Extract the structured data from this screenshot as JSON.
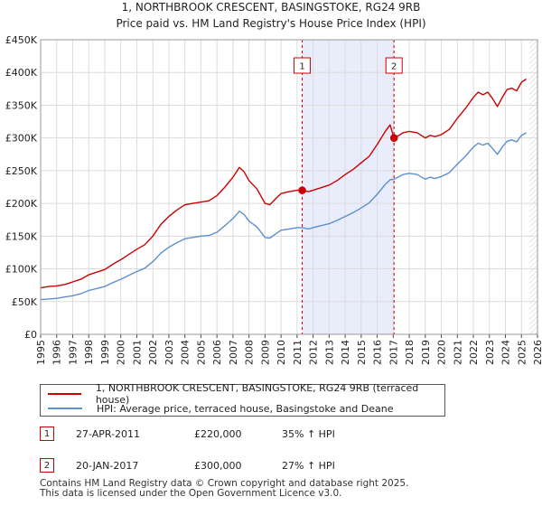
{
  "chart_data": {
    "type": "line",
    "title": "1, NORTHBROOK CRESCENT, BASINGSTOKE, RG24 9RB",
    "subtitle": "Price paid vs. HM Land Registry's House Price Index (HPI)",
    "xlim": [
      1995,
      2026
    ],
    "ylim": [
      0,
      450000
    ],
    "x_ticks": [
      "1995",
      "1996",
      "1997",
      "1998",
      "1999",
      "2000",
      "2001",
      "2002",
      "2003",
      "2004",
      "2005",
      "2006",
      "2007",
      "2008",
      "2009",
      "2010",
      "2011",
      "2012",
      "2013",
      "2014",
      "2015",
      "2016",
      "2017",
      "2018",
      "2019",
      "2020",
      "2021",
      "2022",
      "2023",
      "2024",
      "2025",
      "2026"
    ],
    "y_ticks": [
      {
        "value": 0,
        "label": "£0"
      },
      {
        "value": 50000,
        "label": "£50K"
      },
      {
        "value": 100000,
        "label": "£100K"
      },
      {
        "value": 150000,
        "label": "£150K"
      },
      {
        "value": 200000,
        "label": "£200K"
      },
      {
        "value": 250000,
        "label": "£250K"
      },
      {
        "value": 300000,
        "label": "£300K"
      },
      {
        "value": 350000,
        "label": "£350K"
      },
      {
        "value": 400000,
        "label": "£400K"
      },
      {
        "value": 450000,
        "label": "£450K"
      }
    ],
    "grid": true,
    "shaded_period": {
      "from": 2011.32,
      "to": 2017.05,
      "color": "#e8ecfb"
    },
    "future_hatch_from": 2025.5,
    "series": [
      {
        "name": "1, NORTHBROOK CRESCENT, BASINGSTOKE, RG24 9RB (terraced house)",
        "color": "#cc0000",
        "x": [
          1995.0,
          1995.5,
          1996.0,
          1996.5,
          1997.0,
          1997.5,
          1998.0,
          1998.5,
          1999.0,
          1999.5,
          2000.0,
          2000.5,
          2001.0,
          2001.5,
          2002.0,
          2002.5,
          2003.0,
          2003.5,
          2004.0,
          2004.5,
          2005.0,
          2005.5,
          2006.0,
          2006.5,
          2007.0,
          2007.4,
          2007.7,
          2008.0,
          2008.5,
          2009.0,
          2009.3,
          2009.7,
          2010.0,
          2010.5,
          2011.0,
          2011.32,
          2011.7,
          2012.0,
          2012.5,
          2013.0,
          2013.5,
          2014.0,
          2014.5,
          2015.0,
          2015.5,
          2016.0,
          2016.5,
          2016.8,
          2017.05,
          2017.3,
          2017.6,
          2018.0,
          2018.5,
          2019.0,
          2019.3,
          2019.6,
          2020.0,
          2020.5,
          2021.0,
          2021.5,
          2022.0,
          2022.3,
          2022.6,
          2022.9,
          2023.2,
          2023.5,
          2023.8,
          2024.1,
          2024.4,
          2024.7,
          2025.0,
          2025.3
        ],
        "y": [
          71000,
          73000,
          74000,
          76000,
          80000,
          84000,
          91000,
          95000,
          99000,
          107000,
          114000,
          122000,
          130000,
          137000,
          150000,
          168000,
          180000,
          190000,
          198000,
          200000,
          202000,
          204000,
          212000,
          225000,
          240000,
          255000,
          248000,
          235000,
          222000,
          200000,
          198000,
          208000,
          215000,
          218000,
          220000,
          220000,
          218000,
          220000,
          224000,
          228000,
          235000,
          244000,
          252000,
          262000,
          272000,
          290000,
          310000,
          320000,
          300000,
          303000,
          308000,
          310000,
          308000,
          300000,
          304000,
          302000,
          305000,
          313000,
          330000,
          345000,
          362000,
          370000,
          366000,
          370000,
          360000,
          348000,
          362000,
          374000,
          376000,
          372000,
          385000,
          390000
        ]
      },
      {
        "name": "HPI: Average price, terraced house, Basingstoke and Deane",
        "color": "#5b8fd0",
        "x": [
          1995.0,
          1995.5,
          1996.0,
          1996.5,
          1997.0,
          1997.5,
          1998.0,
          1998.5,
          1999.0,
          1999.5,
          2000.0,
          2000.5,
          2001.0,
          2001.5,
          2002.0,
          2002.5,
          2003.0,
          2003.5,
          2004.0,
          2004.5,
          2005.0,
          2005.5,
          2006.0,
          2006.5,
          2007.0,
          2007.4,
          2007.7,
          2008.0,
          2008.5,
          2009.0,
          2009.3,
          2009.7,
          2010.0,
          2010.5,
          2011.0,
          2011.32,
          2011.7,
          2012.0,
          2012.5,
          2013.0,
          2013.5,
          2014.0,
          2014.5,
          2015.0,
          2015.5,
          2016.0,
          2016.5,
          2016.8,
          2017.05,
          2017.3,
          2017.6,
          2018.0,
          2018.5,
          2019.0,
          2019.3,
          2019.6,
          2020.0,
          2020.5,
          2021.0,
          2021.5,
          2022.0,
          2022.3,
          2022.6,
          2022.9,
          2023.2,
          2023.5,
          2023.8,
          2024.1,
          2024.4,
          2024.7,
          2025.0,
          2025.3
        ],
        "y": [
          53000,
          54000,
          55000,
          57000,
          59000,
          62000,
          67000,
          70000,
          73000,
          79000,
          84000,
          90000,
          96000,
          101000,
          111000,
          124000,
          133000,
          140000,
          146000,
          148000,
          150000,
          151000,
          156000,
          166000,
          177000,
          188000,
          183000,
          173000,
          164000,
          148000,
          147000,
          154000,
          159000,
          161000,
          163000,
          163000,
          161000,
          163000,
          166000,
          169000,
          174000,
          180000,
          186000,
          193000,
          201000,
          214000,
          229000,
          236000,
          237000,
          240000,
          244000,
          246000,
          244000,
          237000,
          240000,
          238000,
          241000,
          247000,
          260000,
          272000,
          286000,
          292000,
          289000,
          292000,
          284000,
          275000,
          286000,
          295000,
          297000,
          294000,
          304000,
          308000
        ]
      }
    ],
    "markers": [
      {
        "label": "1",
        "x": 2011.32,
        "y": 220000
      },
      {
        "label": "2",
        "x": 2017.05,
        "y": 300000
      }
    ]
  },
  "legend": {
    "property_label": "1, NORTHBROOK CRESCENT, BASINGSTOKE, RG24 9RB (terraced house)",
    "hpi_label": "HPI: Average price, terraced house, Basingstoke and Deane"
  },
  "sales": [
    {
      "num": "1",
      "date": "27-APR-2011",
      "price": "£220,000",
      "hpi": "35% ↑ HPI"
    },
    {
      "num": "2",
      "date": "20-JAN-2017",
      "price": "£300,000",
      "hpi": "27% ↑ HPI"
    }
  ],
  "colors": {
    "property": "#cc0000",
    "hpi": "#5b8fd0",
    "shade": "#e8ecfb",
    "grid": "#dcdcdc"
  },
  "footer": {
    "line1": "Contains HM Land Registry data © Crown copyright and database right 2025.",
    "line2": "This data is licensed under the Open Government Licence v3.0."
  }
}
